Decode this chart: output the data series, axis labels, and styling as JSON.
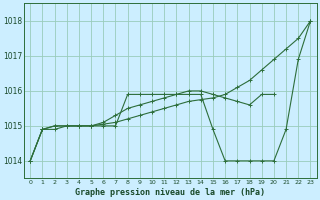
{
  "title": "Graphe pression niveau de la mer (hPa)",
  "background_color": "#cceeff",
  "grid_color": "#99ccbb",
  "line_color": "#2d6e3a",
  "yticks": [
    1014,
    1015,
    1016,
    1017,
    1018
  ],
  "xticks": [
    0,
    1,
    2,
    3,
    4,
    5,
    6,
    7,
    8,
    9,
    10,
    11,
    12,
    13,
    14,
    15,
    16,
    17,
    18,
    19,
    20,
    21,
    22,
    23
  ],
  "ylim": [
    1013.5,
    1018.5
  ],
  "xlim": [
    -0.5,
    23.5
  ],
  "line1_x": [
    0,
    1,
    2,
    3,
    4,
    5,
    6,
    7,
    8,
    9,
    10,
    11,
    12,
    13,
    14,
    15,
    16,
    17,
    18,
    19,
    20,
    21,
    22,
    23
  ],
  "line1_y": [
    1014.0,
    1014.9,
    1014.9,
    1015.0,
    1015.0,
    1015.0,
    1015.05,
    1015.1,
    1015.2,
    1015.3,
    1015.4,
    1015.5,
    1015.6,
    1015.7,
    1015.75,
    1015.8,
    1015.9,
    1016.1,
    1016.3,
    1016.6,
    1016.9,
    1017.2,
    1017.5,
    1018.0
  ],
  "line2_x": [
    0,
    1,
    2,
    3,
    4,
    5,
    6,
    7,
    8,
    9,
    10,
    11,
    12,
    13,
    14,
    15,
    16,
    17,
    18,
    19,
    20,
    21,
    22,
    23
  ],
  "line2_y": [
    1014.0,
    1014.9,
    1015.0,
    1015.0,
    1015.0,
    1015.0,
    1015.0,
    1015.0,
    1015.9,
    1015.9,
    1015.9,
    1015.9,
    1015.9,
    1015.9,
    1015.9,
    1014.9,
    1014.0,
    1014.0,
    1014.0,
    1014.0,
    1014.0,
    1014.9,
    1016.9,
    1018.0
  ],
  "line3_x": [
    0,
    1,
    2,
    3,
    4,
    5,
    6,
    7,
    8,
    9,
    10,
    11,
    12,
    13,
    14,
    15,
    16,
    17,
    18,
    19,
    20
  ],
  "line3_y": [
    1014.0,
    1014.9,
    1015.0,
    1015.0,
    1015.0,
    1015.0,
    1015.1,
    1015.3,
    1015.5,
    1015.6,
    1015.7,
    1015.8,
    1015.9,
    1016.0,
    1016.0,
    1015.9,
    1015.8,
    1015.7,
    1015.6,
    1015.9,
    1015.9
  ]
}
